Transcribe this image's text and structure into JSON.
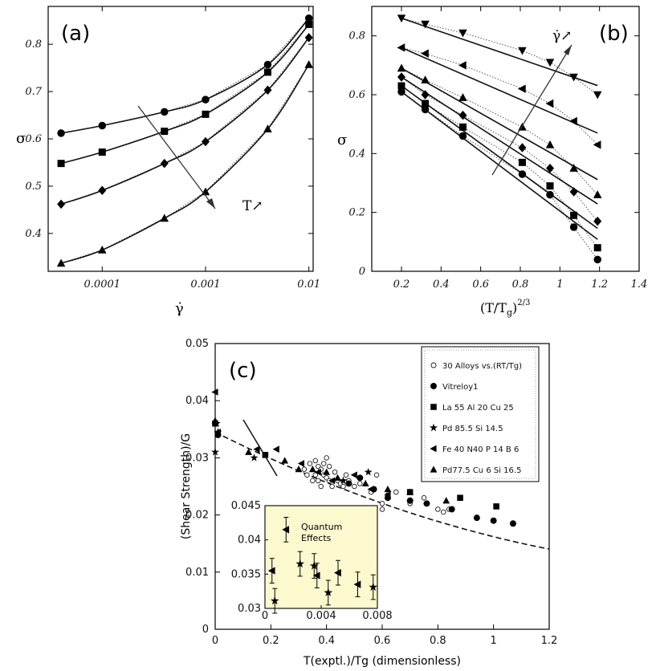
{
  "chart_data": [
    {
      "type": "scatter",
      "panel_label": "(a)",
      "xlabel": "γ̇",
      "ylabel": "σ",
      "xscale": "log",
      "xlim": [
        3e-05,
        0.011
      ],
      "ylim": [
        0.32,
        0.88
      ],
      "xticks": [
        0.0001,
        0.001,
        0.01
      ],
      "xtick_labels": [
        "0.0001",
        "0.001",
        "0.01"
      ],
      "yticks": [
        0.4,
        0.5,
        0.6,
        0.7,
        0.8
      ],
      "ytick_labels": [
        "0.4",
        "0.5",
        "0.6",
        "0.7",
        "0.8"
      ],
      "annotation": "T↗",
      "series": [
        {
          "marker": "circle",
          "x": [
            4e-05,
            0.0001,
            0.0004,
            0.001,
            0.004,
            0.01
          ],
          "y": [
            0.612,
            0.628,
            0.657,
            0.683,
            0.757,
            0.855
          ]
        },
        {
          "marker": "square",
          "x": [
            4e-05,
            0.0001,
            0.0004,
            0.001,
            0.004,
            0.01
          ],
          "y": [
            0.548,
            0.572,
            0.616,
            0.652,
            0.741,
            0.842
          ]
        },
        {
          "marker": "diamond",
          "x": [
            4e-05,
            0.0001,
            0.0004,
            0.001,
            0.004,
            0.01
          ],
          "y": [
            0.462,
            0.491,
            0.548,
            0.594,
            0.703,
            0.814
          ]
        },
        {
          "marker": "triangle",
          "x": [
            4e-05,
            0.0001,
            0.0004,
            0.001,
            0.004,
            0.01
          ],
          "y": [
            0.337,
            0.365,
            0.432,
            0.488,
            0.621,
            0.757
          ]
        }
      ]
    },
    {
      "type": "scatter",
      "panel_label": "(b)",
      "xlabel": "(T/Tg)2/3",
      "ylabel": "σ",
      "xlim": [
        0.05,
        1.4
      ],
      "ylim": [
        0,
        0.9
      ],
      "xticks": [
        0.2,
        0.4,
        0.6,
        0.8,
        1,
        1.2,
        1.4
      ],
      "xtick_labels": [
        "0.2",
        "0.4",
        "0.6",
        "0.8",
        "1",
        "1.2",
        "1.4"
      ],
      "yticks": [
        0,
        0.2,
        0.4,
        0.6,
        0.8
      ],
      "ytick_labels": [
        "0",
        "0.2",
        "0.4",
        "0.6",
        "0.8"
      ],
      "annotation": "γ̇↗",
      "series": [
        {
          "marker": "circle",
          "x": [
            0.2,
            0.32,
            0.51,
            0.81,
            0.95,
            1.07,
            1.19
          ],
          "y": [
            0.61,
            0.55,
            0.46,
            0.33,
            0.26,
            0.15,
            0.04
          ]
        },
        {
          "marker": "square",
          "x": [
            0.2,
            0.32,
            0.51,
            0.81,
            0.95,
            1.07,
            1.19
          ],
          "y": [
            0.63,
            0.57,
            0.49,
            0.37,
            0.29,
            0.19,
            0.08
          ]
        },
        {
          "marker": "diamond",
          "x": [
            0.2,
            0.32,
            0.51,
            0.81,
            0.95,
            1.07,
            1.19
          ],
          "y": [
            0.66,
            0.6,
            0.53,
            0.42,
            0.35,
            0.27,
            0.17
          ]
        },
        {
          "marker": "triangle",
          "x": [
            0.2,
            0.32,
            0.51,
            0.81,
            0.95,
            1.07,
            1.19
          ],
          "y": [
            0.69,
            0.65,
            0.59,
            0.49,
            0.43,
            0.35,
            0.26
          ]
        },
        {
          "marker": "triangle-left",
          "x": [
            0.2,
            0.32,
            0.51,
            0.81,
            0.95,
            1.07,
            1.19
          ],
          "y": [
            0.76,
            0.74,
            0.7,
            0.62,
            0.57,
            0.51,
            0.43
          ]
        },
        {
          "marker": "triangle-down",
          "x": [
            0.2,
            0.32,
            0.51,
            0.81,
            0.95,
            1.07,
            1.19
          ],
          "y": [
            0.86,
            0.84,
            0.81,
            0.75,
            0.71,
            0.66,
            0.6
          ]
        }
      ]
    },
    {
      "type": "scatter",
      "panel_label": "(c)",
      "xlabel": "T(exptl.)/Tg  (dimensionless)",
      "ylabel": "(Shear Strength)/G",
      "xlim": [
        0,
        1.2
      ],
      "ylim": [
        0,
        0.05
      ],
      "xticks": [
        0,
        0.2,
        0.4,
        0.6,
        0.8,
        1,
        1.2
      ],
      "xtick_labels": [
        "0",
        "0.2",
        "0.4",
        "0.6",
        "0.8",
        "1",
        "1.2"
      ],
      "yticks": [
        0,
        0.01,
        0.02,
        0.03,
        0.04,
        0.05
      ],
      "ytick_labels": [
        "0",
        "0.01",
        "0.02",
        "0.03",
        "0.04",
        "0.05"
      ],
      "legend_position": "top-right",
      "legend": [
        {
          "marker": "open-circle",
          "label": "30 Alloys vs.(RT/Tg)"
        },
        {
          "marker": "circle",
          "label": "Vitreloy1"
        },
        {
          "marker": "square",
          "label": "La 55 Al 20 Cu 25"
        },
        {
          "marker": "star",
          "label": "Pd 85.5 Si 14.5"
        },
        {
          "marker": "triangle-left",
          "label": "Fe 40 N40 P 14 B 6"
        },
        {
          "marker": "triangle",
          "label": "Pd77.5 Cu 6 Si 16.5"
        }
      ],
      "series": [
        {
          "marker": "open-circle",
          "x": [
            0.32,
            0.33,
            0.34,
            0.35,
            0.36,
            0.36,
            0.37,
            0.37,
            0.38,
            0.38,
            0.39,
            0.39,
            0.4,
            0.4,
            0.41,
            0.41,
            0.42,
            0.43,
            0.44,
            0.45,
            0.46,
            0.47,
            0.48,
            0.5,
            0.52,
            0.56,
            0.58,
            0.6,
            0.6,
            0.62,
            0.65,
            0.7,
            0.75,
            0.8,
            0.82,
            0.84
          ],
          "y": [
            0.028,
            0.027,
            0.029,
            0.026,
            0.0295,
            0.027,
            0.0285,
            0.026,
            0.028,
            0.025,
            0.029,
            0.027,
            0.03,
            0.0265,
            0.0285,
            0.026,
            0.025,
            0.0275,
            0.026,
            0.0255,
            0.025,
            0.027,
            0.026,
            0.025,
            0.0255,
            0.024,
            0.027,
            0.022,
            0.021,
            0.0235,
            0.024,
            0.022,
            0.023,
            0.021,
            0.0205,
            0.021
          ]
        },
        {
          "marker": "circle",
          "x": [
            0.01,
            0.48,
            0.52,
            0.57,
            0.62,
            0.7,
            0.76,
            0.85,
            0.94,
            1.0,
            1.07
          ],
          "y": [
            0.034,
            0.0255,
            0.0265,
            0.0245,
            0.023,
            0.0225,
            0.022,
            0.021,
            0.0195,
            0.019,
            0.0185
          ]
        },
        {
          "marker": "square",
          "x": [
            0.0,
            0.18,
            0.7,
            0.88,
            1.01
          ],
          "y": [
            0.036,
            0.0305,
            0.024,
            0.023,
            0.0215
          ]
        },
        {
          "marker": "star",
          "x": [
            0.0,
            0.005,
            0.01,
            0.14,
            0.46,
            0.55
          ],
          "y": [
            0.031,
            0.036,
            0.0345,
            0.03,
            0.026,
            0.0275
          ]
        },
        {
          "marker": "triangle-left",
          "x": [
            0.0,
            0.01,
            0.15,
            0.22,
            0.31,
            0.37,
            0.42,
            0.5,
            0.56,
            0.62
          ],
          "y": [
            0.0415,
            0.0345,
            0.0315,
            0.0315,
            0.029,
            0.0275,
            0.026,
            0.027,
            0.0245,
            0.0235
          ]
        },
        {
          "marker": "triangle",
          "x": [
            0.0,
            0.12,
            0.25,
            0.3,
            0.35,
            0.4,
            0.44,
            0.54,
            0.62,
            0.7,
            0.83
          ],
          "y": [
            0.0365,
            0.031,
            0.0295,
            0.028,
            0.028,
            0.0275,
            0.0265,
            0.0255,
            0.0245,
            0.024,
            0.0225
          ]
        }
      ],
      "inset": {
        "xlim": [
          0,
          0.008
        ],
        "ylim": [
          0.03,
          0.045
        ],
        "xticks": [
          0,
          0.004,
          0.008
        ],
        "xtick_labels": [
          "0",
          "0.004",
          "0.008"
        ],
        "yticks": [
          0.03,
          0.035,
          0.04,
          0.045
        ],
        "ytick_labels": [
          "0.03",
          "0.035",
          "0.04",
          "0.045"
        ],
        "background": "#fdf9cf",
        "annotation": [
          "Quantum",
          "Effects"
        ],
        "series": [
          {
            "marker": "triangle-left",
            "x": [
              0.0005,
              0.0015,
              0.0037,
              0.0052,
              0.0066
            ],
            "y": [
              0.0355,
              0.0415,
              0.0348,
              0.0352,
              0.0335
            ]
          },
          {
            "marker": "star",
            "x": [
              0.0007,
              0.0025,
              0.0035,
              0.0045,
              0.0077
            ],
            "y": [
              0.0311,
              0.0365,
              0.0362,
              0.0323,
              0.0331
            ]
          }
        ],
        "error": 0.0018
      }
    }
  ]
}
